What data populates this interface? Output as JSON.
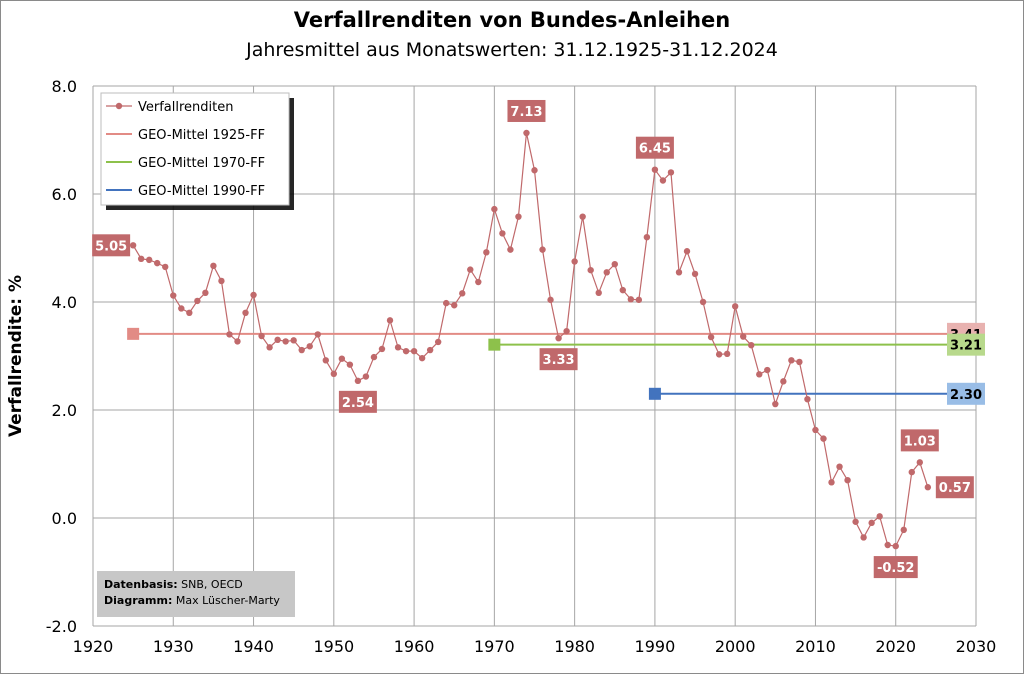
{
  "title": "Verfallrenditen  von Bundes-Anleihen",
  "subtitle": "Jahresmittel aus Monatswerten: 31.12.1925-31.12.2024",
  "source": {
    "data_label": "Datenbasis:",
    "data_value": "SNB, OECD",
    "diagram_label": "Diagramm:",
    "diagram_value": "Max Lüscher-Marty"
  },
  "colors": {
    "series": "#c0696b",
    "geo_1925": "#e28b85",
    "geo_1970": "#8dc14b",
    "geo_1990": "#4273be",
    "label_red": "#c0696b",
    "label_pink": "#e8b2b0",
    "label_green": "#b8d98c",
    "label_blue": "#99bde6",
    "grid": "#a6a6a6"
  },
  "chart_data": {
    "type": "line",
    "xlabel": "",
    "ylabel": "Verfallrendite: %",
    "xlim": [
      1920,
      2030
    ],
    "ylim": [
      -2.0,
      8.0
    ],
    "x_ticks": [
      "1920",
      "1930",
      "1940",
      "1950",
      "1960",
      "1970",
      "1980",
      "1990",
      "2000",
      "2010",
      "2020",
      "2030"
    ],
    "y_ticks": [
      "-2.0",
      "0.0",
      "2.0",
      "4.0",
      "6.0",
      "8.0"
    ],
    "grid": true,
    "legend_position": "top-left",
    "series": [
      {
        "name": "Verfallrenditen",
        "x": [
          1925,
          1926,
          1927,
          1928,
          1929,
          1930,
          1931,
          1932,
          1933,
          1934,
          1935,
          1936,
          1937,
          1938,
          1939,
          1940,
          1941,
          1942,
          1943,
          1944,
          1945,
          1946,
          1947,
          1948,
          1949,
          1950,
          1951,
          1952,
          1953,
          1954,
          1955,
          1956,
          1957,
          1958,
          1959,
          1960,
          1961,
          1962,
          1963,
          1964,
          1965,
          1966,
          1967,
          1968,
          1969,
          1970,
          1971,
          1972,
          1973,
          1974,
          1975,
          1976,
          1977,
          1978,
          1979,
          1980,
          1981,
          1982,
          1983,
          1984,
          1985,
          1986,
          1987,
          1988,
          1989,
          1990,
          1991,
          1992,
          1993,
          1994,
          1995,
          1996,
          1997,
          1998,
          1999,
          2000,
          2001,
          2002,
          2003,
          2004,
          2005,
          2006,
          2007,
          2008,
          2009,
          2010,
          2011,
          2012,
          2013,
          2014,
          2015,
          2016,
          2017,
          2018,
          2019,
          2020,
          2021,
          2022,
          2023,
          2024
        ],
        "y": [
          5.05,
          4.8,
          4.78,
          4.72,
          4.65,
          4.12,
          3.88,
          3.8,
          4.02,
          4.17,
          4.67,
          4.39,
          3.4,
          3.27,
          3.8,
          4.13,
          3.37,
          3.16,
          3.3,
          3.27,
          3.29,
          3.11,
          3.18,
          3.4,
          2.92,
          2.67,
          2.95,
          2.84,
          2.54,
          2.62,
          2.98,
          3.13,
          3.66,
          3.16,
          3.09,
          3.09,
          2.96,
          3.11,
          3.26,
          3.98,
          3.94,
          4.16,
          4.6,
          4.37,
          4.92,
          5.72,
          5.27,
          4.97,
          5.58,
          7.13,
          6.44,
          4.97,
          4.04,
          3.33,
          3.46,
          4.75,
          5.58,
          4.59,
          4.17,
          4.55,
          4.7,
          4.22,
          4.05,
          4.04,
          5.2,
          6.45,
          6.25,
          6.4,
          4.55,
          4.94,
          4.52,
          4.0,
          3.35,
          3.03,
          3.04,
          3.92,
          3.36,
          3.2,
          2.66,
          2.74,
          2.11,
          2.53,
          2.92,
          2.89,
          2.2,
          1.63,
          1.47,
          0.66,
          0.95,
          0.7,
          -0.07,
          -0.36,
          -0.09,
          0.03,
          -0.5,
          -0.52,
          -0.22,
          0.85,
          1.03,
          0.57
        ]
      },
      {
        "name": "GEO-Mittel 1925-FF",
        "x": [
          1925,
          2025
        ],
        "y": [
          3.41,
          3.41
        ]
      },
      {
        "name": "GEO-Mittel 1970-FF",
        "x": [
          1970,
          2025
        ],
        "y": [
          3.21,
          3.21
        ]
      },
      {
        "name": "GEO-Mittel 1990-FF",
        "x": [
          1990,
          2025
        ],
        "y": [
          2.3,
          2.3
        ]
      }
    ],
    "annotations": [
      {
        "text": "5.05",
        "x": 1925,
        "y": 5.05,
        "style": "red",
        "place": "left"
      },
      {
        "text": "7.13",
        "x": 1974,
        "y": 7.13,
        "style": "red",
        "place": "above"
      },
      {
        "text": "6.45",
        "x": 1990,
        "y": 6.45,
        "style": "red",
        "place": "above"
      },
      {
        "text": "3.33",
        "x": 1978,
        "y": 3.33,
        "style": "red",
        "place": "below"
      },
      {
        "text": "2.54",
        "x": 1953,
        "y": 2.54,
        "style": "red",
        "place": "below"
      },
      {
        "text": "1.03",
        "x": 2023,
        "y": 1.03,
        "style": "red",
        "place": "above"
      },
      {
        "text": "-0.52",
        "x": 2020,
        "y": -0.52,
        "style": "red",
        "place": "below"
      },
      {
        "text": "0.57",
        "x": 2024,
        "y": 0.57,
        "style": "red",
        "place": "right"
      },
      {
        "text": "3.41",
        "x": 2025,
        "y": 3.41,
        "style": "pink",
        "place": "end"
      },
      {
        "text": "3.21",
        "x": 2025,
        "y": 3.21,
        "style": "green",
        "place": "end"
      },
      {
        "text": "2.30",
        "x": 2025,
        "y": 2.3,
        "style": "blue",
        "place": "end"
      }
    ]
  }
}
